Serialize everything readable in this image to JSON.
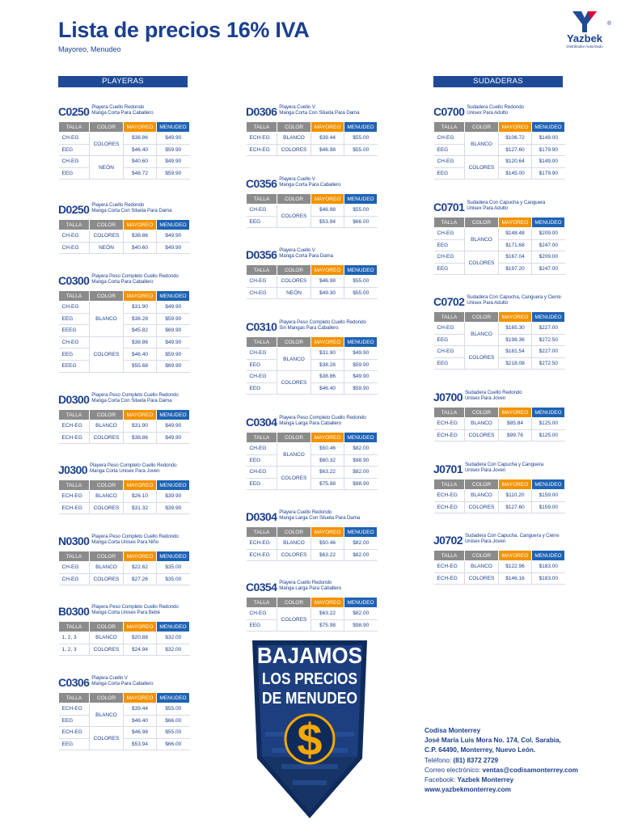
{
  "header": {
    "title": "Lista de precios 16% IVA",
    "subtitle": "Mayoreo, Menudeo",
    "logo_name": "Yazbek",
    "logo_sub": "Distribuidor Autorizado",
    "logo_reg": "®"
  },
  "sections": {
    "left": "PLAYERAS",
    "right": "SUDADERAS"
  },
  "col_headers": [
    "TALLA",
    "COLOR",
    "MAYOREO",
    "MENUDEO"
  ],
  "products": [
    {
      "code": "C0250",
      "desc": [
        "Playera Cuello Redondo",
        "Manga Corta Para Caballero"
      ],
      "rows": [
        {
          "talla": "CH-EG",
          "color": "COLORES",
          "may": "$38.86",
          "men": "$49.90",
          "span": 2
        },
        {
          "talla": "EEG",
          "may": "$46.40",
          "men": "$59.90"
        },
        {
          "talla": "CH-EG",
          "color": "NEÓN",
          "may": "$40.60",
          "men": "$49.90",
          "span": 2
        },
        {
          "talla": "EEG",
          "may": "$48.72",
          "men": "$59.90"
        }
      ]
    },
    {
      "code": "D0250",
      "desc": [
        "Playera Cuello Redondo",
        "Manga Corta Con Silueta Para Dama"
      ],
      "rows": [
        {
          "talla": "CH-EG",
          "color": "COLORES",
          "may": "$38.86",
          "men": "$49.90",
          "span": 1
        },
        {
          "talla": "CH-EG",
          "color": "NEÓN",
          "may": "$40.60",
          "men": "$49.90",
          "span": 1
        }
      ]
    },
    {
      "code": "C0300",
      "desc": [
        "Playera Peso Completo Cuello Redondo",
        "Manga Corta Para Caballero"
      ],
      "rows": [
        {
          "talla": "CH-EG",
          "color": "BLANCO",
          "may": "$31.90",
          "men": "$49.90",
          "span": 3
        },
        {
          "talla": "EEG",
          "may": "$38.28",
          "men": "$59.90"
        },
        {
          "talla": "EEEG",
          "may": "$45.82",
          "men": "$69.90"
        },
        {
          "talla": "CH-EG",
          "color": "COLORES",
          "may": "$38.86",
          "men": "$49.90",
          "span": 3
        },
        {
          "talla": "EEG",
          "may": "$46.40",
          "men": "$59.90"
        },
        {
          "talla": "EEEG",
          "may": "$55.68",
          "men": "$69.90"
        }
      ]
    },
    {
      "code": "D0300",
      "desc": [
        "Playera Peso Completo Cuello Redondo",
        "Manga Corta Con Silueta Para Dama"
      ],
      "rows": [
        {
          "talla": "ECH-EG",
          "color": "BLANCO",
          "may": "$31.90",
          "men": "$49.90",
          "span": 1
        },
        {
          "talla": "ECH-EG",
          "color": "COLORES",
          "may": "$38.86",
          "men": "$49.90",
          "span": 1
        }
      ]
    },
    {
      "code": "J0300",
      "desc": [
        "Playera Peso Completo Cuello Redondo",
        "Manga Corta Unisex Para Joven"
      ],
      "rows": [
        {
          "talla": "ECH-EG",
          "color": "BLANCO",
          "may": "$26.10",
          "men": "$39.90",
          "span": 1
        },
        {
          "talla": "ECH-EG",
          "color": "COLORES",
          "may": "$31.32",
          "men": "$39.90",
          "span": 1
        }
      ]
    },
    {
      "code": "N0300",
      "desc": [
        "Playera Peso Completo Cuello Redondo",
        "Manga Corta Unisex Para Niño"
      ],
      "rows": [
        {
          "talla": "CH-EG",
          "color": "BLANCO",
          "may": "$22.62",
          "men": "$35.00",
          "span": 1
        },
        {
          "talla": "CH-EG",
          "color": "COLORES",
          "may": "$27.26",
          "men": "$35.00",
          "span": 1
        }
      ]
    },
    {
      "code": "B0300",
      "desc": [
        "Playera Peso Completo Cuello Redondo",
        "Manga Corta Unisex Para Bebé"
      ],
      "rows": [
        {
          "talla": "1, 2, 3",
          "color": "BLANCO",
          "may": "$20.88",
          "men": "$32.00",
          "span": 1
        },
        {
          "talla": "1, 2, 3",
          "color": "COLORES",
          "may": "$24.94",
          "men": "$32.00",
          "span": 1
        }
      ]
    },
    {
      "code": "C0306",
      "desc": [
        "Playera Cuello V",
        "Manga Corta Para Caballero"
      ],
      "rows": [
        {
          "talla": "ECH-EG",
          "color": "BLANCO",
          "may": "$39.44",
          "men": "$55.00",
          "span": 2
        },
        {
          "talla": "EEG",
          "may": "$46.40",
          "men": "$66.00"
        },
        {
          "talla": "ECH-EG",
          "color": "COLORES",
          "may": "$46.98",
          "men": "$55.00",
          "span": 2
        },
        {
          "talla": "EEG",
          "may": "$53.94",
          "men": "$66.00"
        }
      ]
    },
    {
      "code": "D0306",
      "desc": [
        "Playera Cuello V",
        "Manga Corta Con Silueta Para Dama"
      ],
      "rows": [
        {
          "talla": "ECH-EG",
          "color": "BLANCO",
          "may": "$39.44",
          "men": "$55.00",
          "span": 1
        },
        {
          "talla": "ECH-EG",
          "color": "COLORES",
          "may": "$46.98",
          "men": "$55.00",
          "span": 1
        }
      ]
    },
    {
      "code": "C0356",
      "desc": [
        "Playera Cuello V",
        "Manga Corta Para Caballero"
      ],
      "rows": [
        {
          "talla": "CH-EG",
          "color": "COLORES",
          "may": "$46.98",
          "men": "$55.00",
          "span": 2
        },
        {
          "talla": "EEG",
          "may": "$53.94",
          "men": "$66.00"
        }
      ]
    },
    {
      "code": "D0356",
      "desc": [
        "Playera Cuello V",
        "Manga Corta Para Dama"
      ],
      "rows": [
        {
          "talla": "CH-EG",
          "color": "COLORES",
          "may": "$46.98",
          "men": "$55.00",
          "span": 1
        },
        {
          "talla": "CH-EG",
          "color": "NEÓN",
          "may": "$49.30",
          "men": "$55.00",
          "span": 1
        }
      ]
    },
    {
      "code": "C0310",
      "desc": [
        "Playera Peso Completo Cuello Redondo",
        "Sin Mangas Para Caballero"
      ],
      "rows": [
        {
          "talla": "CH-EG",
          "color": "BLANCO",
          "may": "$31.90",
          "men": "$49.90",
          "span": 2
        },
        {
          "talla": "EEG",
          "may": "$38.28",
          "men": "$59.90"
        },
        {
          "talla": "CH-EG",
          "color": "COLORES",
          "may": "$38.86",
          "men": "$49.90",
          "span": 2
        },
        {
          "talla": "EEG",
          "may": "$46.40",
          "men": "$59.90"
        }
      ]
    },
    {
      "code": "C0304",
      "desc": [
        "Playera Peso Completo Cuello Redondo",
        "Manga Larga Para Caballero"
      ],
      "rows": [
        {
          "talla": "CH-EG",
          "color": "BLANCO",
          "may": "$50.46",
          "men": "$82.00",
          "span": 2
        },
        {
          "talla": "EEG",
          "may": "$60.32",
          "men": "$98.90"
        },
        {
          "talla": "CH-EG",
          "color": "COLORES",
          "may": "$63.22",
          "men": "$82.00",
          "span": 2
        },
        {
          "talla": "EEG",
          "may": "$75.98",
          "men": "$98.90"
        }
      ]
    },
    {
      "code": "D0304",
      "desc": [
        "Playera Cuello Redondo",
        "Manga Larga Con Silueta Para Dama"
      ],
      "rows": [
        {
          "talla": "ECH-EG",
          "color": "BLANCO",
          "may": "$50.46",
          "men": "$82.00",
          "span": 1
        },
        {
          "talla": "ECH-EG",
          "color": "COLORES",
          "may": "$63.22",
          "men": "$82.00",
          "span": 1
        }
      ]
    },
    {
      "code": "C0354",
      "desc": [
        "Playera Cuello Redondo",
        "Manga Larga Para Caballero"
      ],
      "rows": [
        {
          "talla": "CH-EG",
          "color": "COLORES",
          "may": "$63.22",
          "men": "$82.00",
          "span": 2
        },
        {
          "talla": "EEG",
          "may": "$75.98",
          "men": "$98.90"
        }
      ]
    },
    {
      "code": "C0700",
      "desc": [
        "Sudadera Cuello Redondo",
        "Unisex Para Adulto"
      ],
      "rows": [
        {
          "talla": "CH-EG",
          "color": "BLANCO",
          "may": "$106.72",
          "men": "$149.00",
          "span": 2
        },
        {
          "talla": "EEG",
          "may": "$127.60",
          "men": "$179.90"
        },
        {
          "talla": "CH-EG",
          "color": "COLORES",
          "may": "$120.64",
          "men": "$149.00",
          "span": 2
        },
        {
          "talla": "EEG",
          "may": "$145.00",
          "men": "$179.90"
        }
      ]
    },
    {
      "code": "C0701",
      "desc": [
        "Sudadera Con Capucha y Canguera",
        "Unisex Para Adulto"
      ],
      "rows": [
        {
          "talla": "CH-EG",
          "color": "BLANCO",
          "may": "$148.48",
          "men": "$209.00",
          "span": 2
        },
        {
          "talla": "EEG",
          "may": "$171.68",
          "men": "$247.00"
        },
        {
          "talla": "CH-EG",
          "color": "COLORES",
          "may": "$167.04",
          "men": "$209.00",
          "span": 2
        },
        {
          "talla": "EEG",
          "may": "$197.20",
          "men": "$247.00"
        }
      ]
    },
    {
      "code": "C0702",
      "desc": [
        "Sudadera Con Capucha, Canguera y Cierre",
        "Unisex Para Adulto"
      ],
      "rows": [
        {
          "talla": "CH-EG",
          "color": "BLANCO",
          "may": "$165.30",
          "men": "$227.00",
          "span": 2
        },
        {
          "talla": "EEG",
          "may": "$198.36",
          "men": "$272.50"
        },
        {
          "talla": "CH-EG",
          "color": "COLORES",
          "may": "$181.54",
          "men": "$227.00",
          "span": 2
        },
        {
          "talla": "EEG",
          "may": "$218.08",
          "men": "$272.50"
        }
      ]
    },
    {
      "code": "J0700",
      "desc": [
        "Sudadera Cuello Redondo",
        "Unisex Para Joven"
      ],
      "rows": [
        {
          "talla": "ECH-EG",
          "color": "BLANCO",
          "may": "$85.84",
          "men": "$125.00",
          "span": 1
        },
        {
          "talla": "ECH-EG",
          "color": "COLORES",
          "may": "$99.76",
          "men": "$125.00",
          "span": 1
        }
      ]
    },
    {
      "code": "J0701",
      "desc": [
        "Sudadera Con Capucha y Canguera",
        "Unisex Para Joven"
      ],
      "rows": [
        {
          "talla": "ECH-EG",
          "color": "BLANCO",
          "may": "$110.20",
          "men": "$159.00",
          "span": 1
        },
        {
          "talla": "ECH-EG",
          "color": "COLORES",
          "may": "$127.60",
          "men": "$159.00",
          "span": 1
        }
      ]
    },
    {
      "code": "J0702",
      "desc": [
        "Sudadera Con Capucha, Canguera y Cierre",
        "Unisex Para Joven"
      ],
      "rows": [
        {
          "talla": "ECH-EG",
          "color": "BLANCO",
          "may": "$122.96",
          "men": "$183.00",
          "span": 1
        },
        {
          "talla": "ECH-EG",
          "color": "COLORES",
          "may": "$146.16",
          "men": "$183.00",
          "span": 1
        }
      ]
    }
  ],
  "badge": {
    "line1": "BAJAMOS",
    "line2": "LOS PRECIOS",
    "line3": "DE MENUDEO",
    "symbol": "$"
  },
  "contact": {
    "company": "Codisa Monterrey",
    "address1": "José María Luis Mora No. 174, Col. Sarabia,",
    "address2": "C.P. 64490, Monterrey, Nuevo León.",
    "phone_label": "Teléfono:",
    "phone": "(81) 8372 2729",
    "email_label": "Correo electrónico:",
    "email": "ventas@codisamonterrey.com",
    "facebook_label": "Facebook:",
    "facebook": "Yazbek Monterrey",
    "web": "www.yazbekmonterrey.com"
  },
  "colors": {
    "brand_blue": "#1e4a97",
    "mayoreo": "#f39200",
    "menudeo": "#1e63b4",
    "header_gray": "#8b8b8b",
    "logo_red": "#e4002b"
  }
}
